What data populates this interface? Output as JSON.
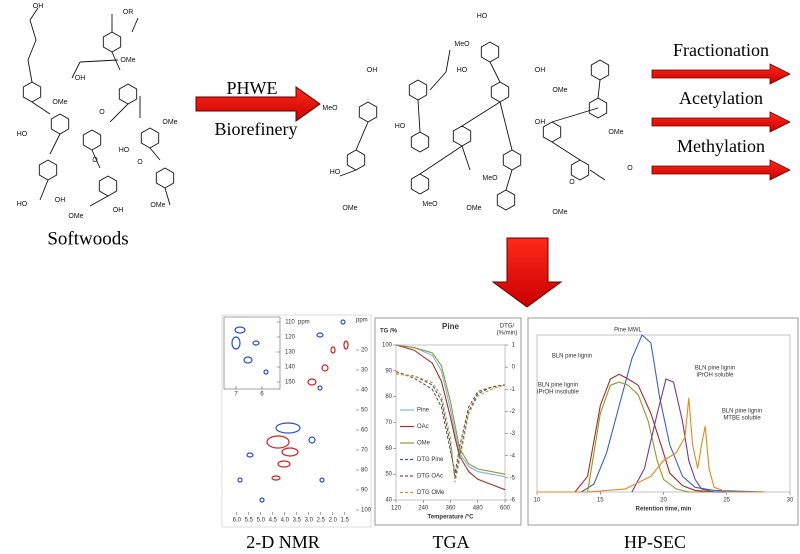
{
  "softwoods": {
    "label": "Softwoods",
    "atom_labels": [
      "OH",
      "OR",
      "OMe",
      "HO",
      "OH",
      "OMe",
      "O",
      "HO",
      "OMe",
      "O",
      "OMe",
      "HO",
      "OH",
      "OMe",
      "OH",
      "O"
    ]
  },
  "process": {
    "label": "PHWE",
    "sublabel": "Biorefinery"
  },
  "product": {
    "atom_labels": [
      "HO",
      "MeO",
      "HO",
      "OH",
      "OMe",
      "MeO",
      "OH",
      "HO",
      "OMe",
      "HO",
      "MeO",
      "OMe",
      "OH",
      "O",
      "OMe",
      "MeO",
      "OMe",
      "O"
    ]
  },
  "modifications": [
    "Fractionation",
    "Acetylation",
    "Methylation"
  ],
  "panels": [
    "2-D NMR",
    "TGA",
    "HP-SEC"
  ],
  "nmr": {
    "axis_unit": "ppm",
    "xticks": [
      {
        "value": 6,
        "label": "6.0"
      },
      5.5,
      {
        "value": 5,
        "label": "5.0"
      },
      4.5,
      {
        "value": 4,
        "label": "4.0"
      },
      3.5,
      {
        "value": 3,
        "label": "3.0"
      },
      2.5,
      {
        "value": 2,
        "label": "2.0"
      },
      1.5
    ],
    "yticks": [
      20,
      30,
      40,
      50,
      60,
      70,
      80,
      90,
      100
    ],
    "inset_xticks": [
      7,
      6
    ],
    "inset_yticks": [
      110,
      120,
      130,
      140,
      150
    ]
  },
  "chart_data": [
    {
      "type": "line",
      "title": "Pine",
      "ylabel": "TG /%",
      "y2label": [
        "DTG/",
        "(%/min)"
      ],
      "xlabel": "Temperature /°C",
      "x": [
        120,
        200,
        280,
        320,
        360,
        380,
        400,
        440,
        480,
        540,
        600
      ],
      "xlim": [
        120,
        600
      ],
      "xticks": [
        120,
        240,
        360,
        480,
        600
      ],
      "ylim": [
        40,
        100
      ],
      "yticks": [
        40,
        50,
        60,
        70,
        80,
        90,
        100
      ],
      "y2lim": [
        -6,
        1
      ],
      "y2ticks": [
        1,
        0,
        -1,
        -2,
        -3,
        -4,
        -5,
        -6
      ],
      "legend": "lower-left",
      "series": [
        {
          "name": "Pine",
          "color": "#7fb6d8",
          "values": [
            100,
            99,
            96,
            90,
            75,
            66,
            58,
            53,
            51,
            50,
            49
          ]
        },
        {
          "name": "OAc",
          "color": "#a0302c",
          "values": [
            100,
            98,
            93,
            86,
            72,
            64,
            57,
            51,
            48,
            46,
            44
          ]
        },
        {
          "name": "OMe",
          "color": "#8a9a3a",
          "values": [
            100,
            99,
            97,
            92,
            78,
            69,
            60,
            54,
            52,
            51,
            50
          ]
        },
        {
          "name": "DTG Pine",
          "color": "#2f5f9a",
          "axis": "y2",
          "dashed": true,
          "values": [
            -0.3,
            -0.4,
            -0.8,
            -1.5,
            -3.5,
            -5.0,
            -4.0,
            -2.0,
            -1.2,
            -0.9,
            -0.8
          ]
        },
        {
          "name": "DTG OAc",
          "color": "#8a4a2a",
          "axis": "y2",
          "dashed": true,
          "values": [
            -0.2,
            -0.5,
            -1.0,
            -1.8,
            -3.8,
            -4.8,
            -3.6,
            -1.8,
            -1.1,
            -0.9,
            -0.8
          ]
        },
        {
          "name": "DTG OMe",
          "color": "#b8a030",
          "axis": "y2",
          "dashed": true,
          "values": [
            -0.3,
            -0.4,
            -0.7,
            -1.3,
            -3.2,
            -5.2,
            -4.2,
            -2.1,
            -1.3,
            -1.0,
            -0.8
          ]
        }
      ]
    },
    {
      "type": "line",
      "xlabel": "Retention time, min",
      "xlim": [
        10,
        30
      ],
      "xticks": [
        10,
        15,
        20,
        25,
        30
      ],
      "ylim": [
        0,
        1
      ],
      "series": [
        {
          "label": [
            "Pine MWL"
          ],
          "color": "#3a62c4",
          "x": [
            13.5,
            14.5,
            15.5,
            16.5,
            17.5,
            18.3,
            19,
            19.7,
            20.5,
            21.5,
            22.5,
            24,
            28
          ],
          "values": [
            0,
            0.05,
            0.25,
            0.55,
            0.85,
            1.0,
            0.95,
            0.6,
            0.3,
            0.1,
            0.03,
            0.01,
            0
          ]
        },
        {
          "label": [
            "BLN pine lignin"
          ],
          "color": "#a02c2c",
          "x": [
            13,
            14,
            15,
            15.8,
            16.5,
            17.2,
            18,
            19,
            19.8,
            20.5,
            21.5,
            22.5,
            24,
            28
          ],
          "values": [
            0,
            0.1,
            0.55,
            0.72,
            0.75,
            0.72,
            0.68,
            0.5,
            0.3,
            0.12,
            0.04,
            0.01,
            0,
            0
          ]
        },
        {
          "label": [
            "BLN pine lignin",
            "iPrOH insoluble"
          ],
          "color": "#8a9a2a",
          "x": [
            14,
            15,
            15.8,
            16.5,
            17.2,
            18,
            18.8,
            19.5,
            20,
            21,
            22,
            24
          ],
          "values": [
            0,
            0.5,
            0.68,
            0.7,
            0.68,
            0.62,
            0.45,
            0.2,
            0.08,
            0.02,
            0,
            0
          ]
        },
        {
          "label": [
            "BLN pine lignin",
            "iPrOH soluble"
          ],
          "color": "#7a3a8a",
          "x": [
            17.5,
            18.5,
            19.5,
            20.2,
            20.8,
            21.5,
            22,
            22.5,
            23,
            24,
            28
          ],
          "values": [
            0,
            0.15,
            0.5,
            0.72,
            0.7,
            0.45,
            0.2,
            0.08,
            0.02,
            0,
            0
          ]
        },
        {
          "label": [
            "BLN pine lignin",
            "MTBE soluble"
          ],
          "color": "#e08a20",
          "x": [
            10,
            14,
            17,
            19,
            20,
            21,
            21.7,
            22,
            22.3,
            22.7,
            23,
            23.3,
            23.6,
            24,
            25,
            28
          ],
          "values": [
            0,
            0,
            0.02,
            0.1,
            0.2,
            0.25,
            0.35,
            0.6,
            0.3,
            0.15,
            0.3,
            0.42,
            0.15,
            0.03,
            0,
            0
          ]
        }
      ]
    }
  ]
}
